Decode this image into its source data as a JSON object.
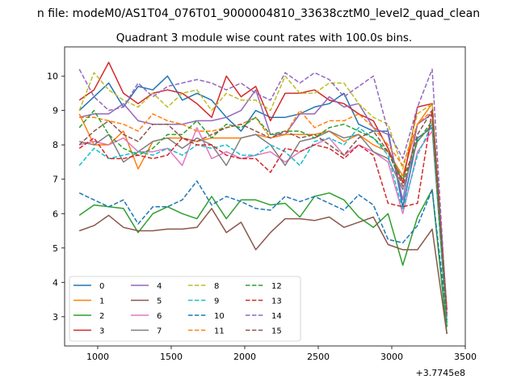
{
  "chart_data": {
    "type": "line",
    "suptitle": "n file: modeM0/AS1T04_076T01_9000004810_33638cztM0_level2_quad_clean",
    "title": "Quadrant 3 module wise count rates with 100.0s bins.",
    "xlabel": "",
    "ylabel": "",
    "x_offset_label": "+3.7745e8",
    "xlim": [
      775,
      3500
    ],
    "ylim": [
      2.15,
      10.85
    ],
    "xticks": [
      1000,
      1500,
      2000,
      2500,
      3000,
      3500
    ],
    "xtick_labels": [
      "1000",
      "1500",
      "2000",
      "2500",
      "3000",
      "3500"
    ],
    "yticks": [
      3,
      4,
      5,
      6,
      7,
      8,
      9,
      10
    ],
    "ytick_labels": [
      "3",
      "4",
      "5",
      "6",
      "7",
      "8",
      "9",
      "10"
    ],
    "legend_position": "lower-left",
    "legend_columns": 4,
    "x": [
      875,
      975,
      1075,
      1175,
      1275,
      1375,
      1475,
      1575,
      1675,
      1775,
      1875,
      1975,
      2075,
      2175,
      2275,
      2375,
      2475,
      2575,
      2675,
      2775,
      2875,
      2975,
      3075,
      3175,
      3275,
      3375
    ],
    "series": [
      {
        "name": "0",
        "color": "#1f77b4",
        "dash": "solid",
        "values": [
          9.0,
          9.4,
          9.8,
          9.1,
          9.7,
          9.6,
          10.0,
          9.3,
          9.5,
          9.3,
          8.8,
          8.4,
          9.0,
          8.8,
          8.8,
          8.9,
          9.1,
          9.2,
          9.5,
          8.6,
          8.4,
          8.4,
          6.2,
          8.2,
          8.5,
          2.8
        ]
      },
      {
        "name": "1",
        "color": "#ff7f0e",
        "dash": "solid",
        "values": [
          8.9,
          8.0,
          8.0,
          8.4,
          7.3,
          8.1,
          8.2,
          8.2,
          8.1,
          8.2,
          8.2,
          8.2,
          8.3,
          8.2,
          8.3,
          8.3,
          8.3,
          8.4,
          8.1,
          8.3,
          8.0,
          7.8,
          7.1,
          8.6,
          9.2,
          3.0
        ]
      },
      {
        "name": "2",
        "color": "#2ca02c",
        "dash": "solid",
        "values": [
          5.95,
          6.25,
          6.2,
          6.15,
          5.45,
          6.0,
          6.2,
          6.0,
          5.85,
          6.5,
          5.85,
          6.4,
          6.4,
          6.25,
          6.3,
          5.9,
          6.5,
          6.6,
          6.4,
          5.9,
          5.6,
          6.0,
          4.5,
          5.9,
          6.7,
          2.5
        ]
      },
      {
        "name": "3",
        "color": "#d62728",
        "dash": "solid",
        "values": [
          9.3,
          9.6,
          10.4,
          9.5,
          9.2,
          9.5,
          9.6,
          9.5,
          9.2,
          8.8,
          10.0,
          9.4,
          9.7,
          8.7,
          9.5,
          9.5,
          9.6,
          9.3,
          9.2,
          8.9,
          8.7,
          7.9,
          6.9,
          9.1,
          9.2,
          3.2
        ]
      },
      {
        "name": "4",
        "color": "#9467bd",
        "dash": "solid",
        "values": [
          8.8,
          8.9,
          8.9,
          9.2,
          8.7,
          8.6,
          8.6,
          8.6,
          8.7,
          8.7,
          8.8,
          9.0,
          9.6,
          8.3,
          8.3,
          8.9,
          8.9,
          9.4,
          9.1,
          9.2,
          8.5,
          8.3,
          6.4,
          8.6,
          8.9,
          3.0
        ]
      },
      {
        "name": "5",
        "color": "#8c564b",
        "dash": "solid",
        "values": [
          5.5,
          5.65,
          5.95,
          5.6,
          5.5,
          5.5,
          5.55,
          5.55,
          5.6,
          6.15,
          5.45,
          5.75,
          4.95,
          5.45,
          5.85,
          5.85,
          5.8,
          5.9,
          5.6,
          5.75,
          5.9,
          5.1,
          4.95,
          4.95,
          5.55,
          2.5
        ]
      },
      {
        "name": "6",
        "color": "#e377c2",
        "dash": "solid",
        "values": [
          8.0,
          8.1,
          8.0,
          8.2,
          7.8,
          7.8,
          7.9,
          7.4,
          8.5,
          7.6,
          7.8,
          7.6,
          7.7,
          7.8,
          7.5,
          7.8,
          8.0,
          8.2,
          7.7,
          8.0,
          7.8,
          7.5,
          6.0,
          7.8,
          8.4,
          3.0
        ]
      },
      {
        "name": "7",
        "color": "#7f7f7f",
        "dash": "solid",
        "values": [
          8.1,
          8.0,
          8.3,
          7.5,
          7.8,
          8.1,
          8.2,
          7.9,
          8.2,
          8.0,
          7.4,
          8.2,
          8.3,
          8.0,
          7.4,
          8.1,
          8.2,
          8.4,
          8.2,
          8.3,
          7.8,
          7.6,
          6.7,
          8.1,
          8.6,
          2.7
        ]
      },
      {
        "name": "8",
        "color": "#bcbd22",
        "dash": "dashed",
        "values": [
          9.0,
          10.1,
          9.6,
          9.3,
          9.1,
          9.5,
          9.1,
          9.5,
          9.6,
          9.0,
          9.5,
          9.3,
          9.3,
          9.0,
          10.0,
          9.5,
          9.5,
          9.8,
          9.8,
          9.2,
          8.8,
          8.6,
          7.3,
          8.9,
          9.2,
          3.2
        ]
      },
      {
        "name": "9",
        "color": "#17becf",
        "dash": "dashed",
        "values": [
          7.4,
          7.9,
          7.6,
          7.7,
          7.8,
          7.7,
          7.9,
          7.7,
          8.0,
          7.9,
          8.0,
          7.7,
          7.7,
          8.0,
          7.8,
          7.4,
          8.1,
          8.2,
          8.0,
          8.5,
          8.2,
          7.7,
          6.1,
          7.7,
          8.6,
          2.8
        ]
      },
      {
        "name": "10",
        "color": "#1f77b4",
        "dash": "dashed",
        "values": [
          6.6,
          6.4,
          6.2,
          6.4,
          5.7,
          6.2,
          6.2,
          6.4,
          6.95,
          6.25,
          6.5,
          6.35,
          6.15,
          6.1,
          6.5,
          6.35,
          6.5,
          6.3,
          6.1,
          6.55,
          6.25,
          5.25,
          5.15,
          5.65,
          6.7,
          2.9
        ]
      },
      {
        "name": "11",
        "color": "#ff7f0e",
        "dash": "dashed",
        "values": [
          8.8,
          8.8,
          8.7,
          8.6,
          8.4,
          8.9,
          8.7,
          8.6,
          8.4,
          8.4,
          8.5,
          8.6,
          8.8,
          8.2,
          8.3,
          9.0,
          8.5,
          8.7,
          8.7,
          8.9,
          8.5,
          8.0,
          7.4,
          8.6,
          9.0,
          3.0
        ]
      },
      {
        "name": "12",
        "color": "#2ca02c",
        "dash": "dashed",
        "values": [
          8.5,
          9.0,
          8.3,
          7.9,
          7.7,
          7.9,
          8.3,
          8.3,
          8.7,
          8.2,
          8.6,
          8.5,
          8.8,
          8.3,
          8.4,
          8.4,
          8.2,
          8.5,
          8.6,
          8.4,
          8.2,
          7.8,
          7.0,
          8.1,
          8.7,
          2.7
        ]
      },
      {
        "name": "13",
        "color": "#d62728",
        "dash": "dashed",
        "values": [
          7.9,
          8.2,
          7.6,
          7.6,
          7.7,
          7.6,
          7.7,
          8.2,
          8.0,
          8.0,
          7.7,
          7.6,
          7.6,
          7.2,
          7.9,
          7.8,
          8.0,
          7.9,
          7.6,
          8.0,
          7.7,
          6.3,
          6.2,
          6.3,
          9.0,
          3.2
        ]
      },
      {
        "name": "14",
        "color": "#9467bd",
        "dash": "dashed",
        "values": [
          10.2,
          9.4,
          9.0,
          9.1,
          9.8,
          9.4,
          9.7,
          9.8,
          9.9,
          9.8,
          9.6,
          9.8,
          9.5,
          9.3,
          10.1,
          9.8,
          10.1,
          9.9,
          9.4,
          9.7,
          10.0,
          8.4,
          7.6,
          9.1,
          10.2,
          3.0
        ]
      },
      {
        "name": "15",
        "color": "#8c564b",
        "dash": "dashed",
        "values": [
          8.0,
          8.4,
          8.7,
          8.3,
          8.1,
          8.6,
          8.6,
          8.2,
          8.1,
          8.3,
          8.5,
          8.6,
          8.4,
          8.2,
          8.4,
          8.2,
          8.3,
          8.0,
          7.7,
          8.2,
          8.4,
          7.8,
          6.8,
          8.3,
          9.0,
          3.1
        ]
      }
    ]
  }
}
